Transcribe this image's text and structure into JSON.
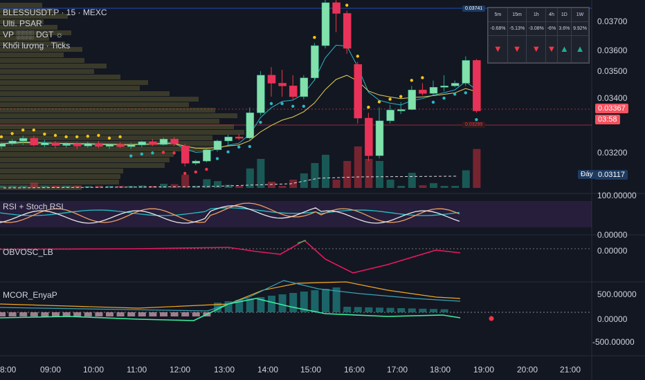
{
  "header": {
    "symbol_line": "BLESSUSDT.P · 15 · MEXC",
    "line2": "Ulti. PSAR",
    "line3": "VP ░░░ DGT ☼",
    "line4": "Khối lượng · Ticks"
  },
  "price_axis": {
    "ticks": [
      "0.03700",
      "0.03600",
      "0.03500",
      "0.03400",
      "0.03200"
    ],
    "last_price": "0.03367",
    "countdown": "03:58",
    "day_label": "Đáy",
    "day_value": "0.03117",
    "top_line": "0.03741",
    "mid_line": "0.03299"
  },
  "tf_table": {
    "headers": [
      "5m",
      "15m",
      "1h",
      "4h",
      "1D",
      "1W"
    ],
    "changes": [
      "-0.68%",
      "-5.13%",
      "-3.08%",
      "-6%",
      "3.6%",
      "9.92%"
    ],
    "directions": [
      "down",
      "down",
      "down",
      "down",
      "up",
      "up"
    ]
  },
  "panels": {
    "rsi": {
      "title": "RSI + Stoch RSI",
      "ticks": [
        "100.00000",
        "0.00000"
      ]
    },
    "obv": {
      "title": "OBVOSC_LB",
      "ticks": [
        "0.00000"
      ]
    },
    "mcor": {
      "title": "MCOR_EnyaP",
      "ticks": [
        "500.00000",
        "0.00000",
        "-500.00000"
      ]
    }
  },
  "time_axis": [
    "8:00",
    "09:00",
    "10:00",
    "11:00",
    "12:00",
    "13:00",
    "14:00",
    "15:00",
    "16:00",
    "17:00",
    "18:00",
    "19:00",
    "20:00",
    "21:00"
  ],
  "colors": {
    "bg": "#131722",
    "up": "#22ab94",
    "down": "#f23645",
    "sar": "#f5c518",
    "vp": "#6b6536"
  },
  "chart_data": {
    "type": "candlestick",
    "title": "BLESSUSDT.P · 15 · MEXC",
    "ylim": [
      0.0308,
      0.0378
    ],
    "candles": [
      {
        "t": "07:45",
        "o": 0.03235,
        "h": 0.0325,
        "c": 0.03245,
        "l": 0.03225
      },
      {
        "t": "08:00",
        "o": 0.03245,
        "h": 0.03262,
        "c": 0.03255,
        "l": 0.03238
      },
      {
        "t": "08:15",
        "o": 0.03255,
        "h": 0.03275,
        "c": 0.03265,
        "l": 0.0324
      },
      {
        "t": "08:30",
        "o": 0.03265,
        "h": 0.03275,
        "c": 0.0324,
        "l": 0.03235
      },
      {
        "t": "08:45",
        "o": 0.0324,
        "h": 0.0326,
        "c": 0.03248,
        "l": 0.03232
      },
      {
        "t": "09:00",
        "o": 0.03248,
        "h": 0.03255,
        "c": 0.03238,
        "l": 0.03228
      },
      {
        "t": "09:15",
        "o": 0.03238,
        "h": 0.0325,
        "c": 0.03244,
        "l": 0.0323
      },
      {
        "t": "09:30",
        "o": 0.03244,
        "h": 0.0325,
        "c": 0.03236,
        "l": 0.03225
      },
      {
        "t": "09:45",
        "o": 0.03236,
        "h": 0.03252,
        "c": 0.03246,
        "l": 0.0323
      },
      {
        "t": "10:00",
        "o": 0.03246,
        "h": 0.03255,
        "c": 0.03235,
        "l": 0.03228
      },
      {
        "t": "10:15",
        "o": 0.03235,
        "h": 0.03245,
        "c": 0.03242,
        "l": 0.03225
      },
      {
        "t": "10:30",
        "o": 0.03242,
        "h": 0.0325,
        "c": 0.03234,
        "l": 0.03228
      },
      {
        "t": "10:45",
        "o": 0.03234,
        "h": 0.03248,
        "c": 0.0324,
        "l": 0.03225
      },
      {
        "t": "11:00",
        "o": 0.0324,
        "h": 0.03256,
        "c": 0.03252,
        "l": 0.03232
      },
      {
        "t": "11:15",
        "o": 0.03252,
        "h": 0.03262,
        "c": 0.03242,
        "l": 0.03236
      },
      {
        "t": "11:30",
        "o": 0.03242,
        "h": 0.03268,
        "c": 0.03262,
        "l": 0.03238
      },
      {
        "t": "11:45",
        "o": 0.03262,
        "h": 0.0327,
        "c": 0.03244,
        "l": 0.03236
      },
      {
        "t": "12:00",
        "o": 0.03236,
        "h": 0.03244,
        "c": 0.03172,
        "l": 0.0316
      },
      {
        "t": "12:15",
        "o": 0.03172,
        "h": 0.03185,
        "c": 0.0318,
        "l": 0.03165
      },
      {
        "t": "12:30",
        "o": 0.0318,
        "h": 0.03225,
        "c": 0.03222,
        "l": 0.03175
      },
      {
        "t": "12:45",
        "o": 0.03222,
        "h": 0.0326,
        "c": 0.03255,
        "l": 0.03215
      },
      {
        "t": "13:00",
        "o": 0.03255,
        "h": 0.03278,
        "c": 0.0327,
        "l": 0.0324
      },
      {
        "t": "13:15",
        "o": 0.0327,
        "h": 0.0328,
        "c": 0.03266,
        "l": 0.03258
      },
      {
        "t": "13:30",
        "o": 0.03266,
        "h": 0.0338,
        "c": 0.0336,
        "l": 0.0326
      },
      {
        "t": "13:45",
        "o": 0.0336,
        "h": 0.03515,
        "c": 0.035,
        "l": 0.0335
      },
      {
        "t": "14:00",
        "o": 0.035,
        "h": 0.0353,
        "c": 0.0347,
        "l": 0.0342
      },
      {
        "t": "14:15",
        "o": 0.0347,
        "h": 0.0352,
        "c": 0.0346,
        "l": 0.0342
      },
      {
        "t": "14:30",
        "o": 0.0346,
        "h": 0.035,
        "c": 0.0342,
        "l": 0.0341
      },
      {
        "t": "14:45",
        "o": 0.0342,
        "h": 0.035,
        "c": 0.0349,
        "l": 0.0341
      },
      {
        "t": "15:00",
        "o": 0.0349,
        "h": 0.0362,
        "c": 0.0361,
        "l": 0.0348
      },
      {
        "t": "15:15",
        "o": 0.0361,
        "h": 0.0378,
        "c": 0.0377,
        "l": 0.036
      },
      {
        "t": "15:30",
        "o": 0.0377,
        "h": 0.0378,
        "c": 0.0373,
        "l": 0.0366
      },
      {
        "t": "15:45",
        "o": 0.0373,
        "h": 0.0374,
        "c": 0.036,
        "l": 0.0358
      },
      {
        "t": "16:00",
        "o": 0.0354,
        "h": 0.0355,
        "c": 0.0334,
        "l": 0.0332
      },
      {
        "t": "16:15",
        "o": 0.0334,
        "h": 0.0336,
        "c": 0.032,
        "l": 0.0318
      },
      {
        "t": "16:30",
        "o": 0.032,
        "h": 0.0338,
        "c": 0.0333,
        "l": 0.0319
      },
      {
        "t": "16:45",
        "o": 0.0333,
        "h": 0.0339,
        "c": 0.0337,
        "l": 0.0332
      },
      {
        "t": "17:00",
        "o": 0.0337,
        "h": 0.034,
        "c": 0.03372,
        "l": 0.03355
      },
      {
        "t": "17:15",
        "o": 0.03372,
        "h": 0.0346,
        "c": 0.03445,
        "l": 0.0337
      },
      {
        "t": "17:30",
        "o": 0.03445,
        "h": 0.0347,
        "c": 0.03432,
        "l": 0.03425
      },
      {
        "t": "17:45",
        "o": 0.03432,
        "h": 0.0348,
        "c": 0.03455,
        "l": 0.03425
      },
      {
        "t": "18:00",
        "o": 0.03455,
        "h": 0.035,
        "c": 0.0346,
        "l": 0.0344
      },
      {
        "t": "18:15",
        "o": 0.0346,
        "h": 0.0348,
        "c": 0.0347,
        "l": 0.03455
      },
      {
        "t": "18:30",
        "o": 0.0347,
        "h": 0.0357,
        "c": 0.03555,
        "l": 0.0346
      },
      {
        "t": "18:45",
        "o": 0.03555,
        "h": 0.0356,
        "c": 0.03367,
        "l": 0.0336
      }
    ]
  }
}
